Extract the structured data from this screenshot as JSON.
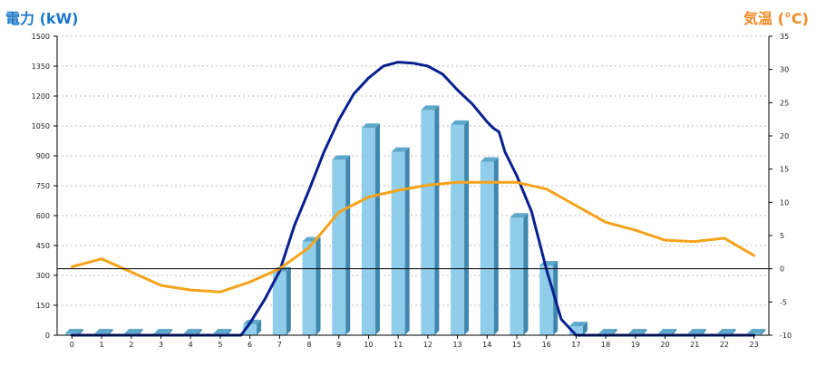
{
  "chart_data": {
    "type": "bar+line",
    "left_axis_label": "電力 (kW)",
    "right_axis_label": "気温 (°C)",
    "categories": [
      "0",
      "1",
      "2",
      "3",
      "4",
      "5",
      "6",
      "7",
      "8",
      "9",
      "10",
      "11",
      "12",
      "13",
      "14",
      "15",
      "16",
      "17",
      "18",
      "19",
      "20",
      "21",
      "22",
      "23"
    ],
    "left_ylim": [
      0,
      1500
    ],
    "left_yticks": [
      0,
      150,
      300,
      450,
      600,
      750,
      900,
      1050,
      1200,
      1350,
      1500
    ],
    "right_ylim": [
      -10,
      35
    ],
    "right_yticks": [
      -10,
      -5,
      0,
      5,
      10,
      15,
      20,
      25,
      30,
      35
    ],
    "grid": "horizontal dotted",
    "series": [
      {
        "kind": "bar",
        "axis": "left",
        "color": "#8fcdeb",
        "values": [
          0,
          0,
          0,
          0,
          0,
          0,
          55,
          320,
          470,
          880,
          1040,
          920,
          1130,
          1055,
          870,
          590,
          350,
          45,
          0,
          0,
          0,
          0,
          0,
          0
        ]
      },
      {
        "kind": "line",
        "axis": "left",
        "color": "#0a1f8f",
        "x": [
          0,
          1,
          2,
          3,
          4,
          5,
          5.7,
          6,
          6.5,
          7,
          7.5,
          8,
          8.5,
          9,
          9.5,
          10,
          10.5,
          11,
          11.5,
          12,
          12.5,
          13,
          13.5,
          14,
          14.2,
          14.4,
          14.6,
          15,
          15.5,
          16,
          16.5,
          17,
          17.5,
          18,
          19,
          20,
          21,
          22,
          23
        ],
        "values": [
          0,
          0,
          0,
          0,
          0,
          0,
          0,
          60,
          180,
          320,
          550,
          730,
          920,
          1080,
          1210,
          1290,
          1350,
          1370,
          1365,
          1350,
          1310,
          1230,
          1160,
          1070,
          1040,
          1020,
          920,
          800,
          620,
          330,
          80,
          0,
          0,
          0,
          0,
          0,
          0,
          0,
          0
        ]
      },
      {
        "kind": "line",
        "axis": "right",
        "color": "#f5a31a",
        "values": [
          0.3,
          1.5,
          -0.5,
          -2.5,
          -3.2,
          -3.5,
          -2.0,
          0.0,
          3.2,
          8.5,
          10.8,
          11.8,
          12.6,
          13.0,
          13.0,
          13.0,
          12.0,
          9.5,
          7.0,
          5.8,
          4.3,
          4.1,
          4.6,
          2.0
        ]
      }
    ]
  }
}
